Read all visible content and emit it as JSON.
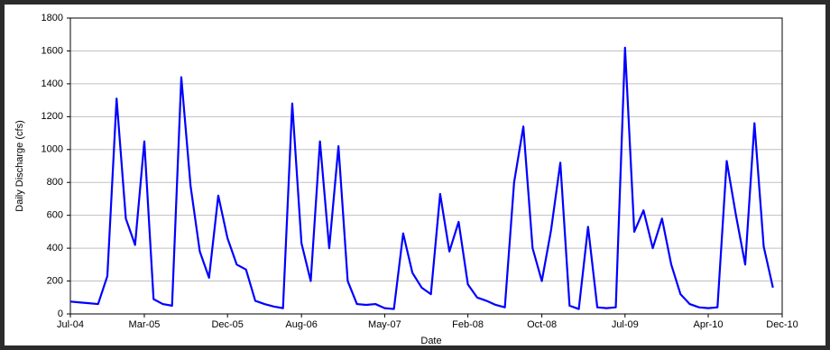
{
  "chart_data": {
    "type": "line",
    "x_label": "Date",
    "y_label": "Daily Discharge (cfs)",
    "x": [
      "2004-07",
      "2004-08",
      "2004-09",
      "2004-10",
      "2004-11",
      "2004-12",
      "2005-01",
      "2005-02",
      "2005-03",
      "2005-04",
      "2005-05",
      "2005-06",
      "2005-07",
      "2005-08",
      "2005-09",
      "2005-10",
      "2005-11",
      "2005-12",
      "2006-01",
      "2006-02",
      "2006-03",
      "2006-04",
      "2006-05",
      "2006-06",
      "2006-07",
      "2006-08",
      "2006-09",
      "2006-10",
      "2006-11",
      "2006-12",
      "2007-01",
      "2007-02",
      "2007-03",
      "2007-04",
      "2007-05",
      "2007-06",
      "2007-07",
      "2007-08",
      "2007-09",
      "2007-10",
      "2007-11",
      "2007-12",
      "2008-01",
      "2008-02",
      "2008-03",
      "2008-04",
      "2008-05",
      "2008-06",
      "2008-07",
      "2008-08",
      "2008-09",
      "2008-10",
      "2008-11",
      "2008-12",
      "2009-01",
      "2009-02",
      "2009-03",
      "2009-04",
      "2009-05",
      "2009-06",
      "2009-07",
      "2009-08",
      "2009-09",
      "2009-10",
      "2009-11",
      "2009-12",
      "2010-01",
      "2010-02",
      "2010-03",
      "2010-04",
      "2010-05",
      "2010-06",
      "2010-07",
      "2010-08",
      "2010-09",
      "2010-10",
      "2010-11"
    ],
    "series": [
      {
        "name": "Daily Discharge",
        "color": "#0000ff",
        "values": [
          75,
          70,
          65,
          60,
          230,
          1310,
          580,
          420,
          1050,
          90,
          60,
          50,
          1440,
          780,
          380,
          220,
          720,
          460,
          300,
          270,
          80,
          60,
          45,
          35,
          1280,
          430,
          200,
          1050,
          400,
          1020,
          200,
          60,
          55,
          60,
          35,
          30,
          490,
          250,
          160,
          120,
          730,
          380,
          560,
          180,
          100,
          80,
          55,
          40,
          800,
          1140,
          400,
          200,
          510,
          920,
          50,
          30,
          530,
          40,
          35,
          40,
          1620,
          500,
          630,
          400,
          580,
          300,
          120,
          60,
          40,
          35,
          40,
          930,
          600,
          300,
          1160,
          410,
          160
        ]
      }
    ],
    "xlim": [
      "2004-07",
      "2010-12"
    ],
    "xticks": [
      {
        "value": "2004-07",
        "label": "Jul-04"
      },
      {
        "value": "2005-03",
        "label": "Mar-05"
      },
      {
        "value": "2005-12",
        "label": "Dec-05"
      },
      {
        "value": "2006-08",
        "label": "Aug-06"
      },
      {
        "value": "2007-05",
        "label": "May-07"
      },
      {
        "value": "2008-02",
        "label": "Feb-08"
      },
      {
        "value": "2008-10",
        "label": "Oct-08"
      },
      {
        "value": "2009-07",
        "label": "Jul-09"
      },
      {
        "value": "2010-04",
        "label": "Apr-10"
      },
      {
        "value": "2010-12",
        "label": "Dec-10"
      }
    ],
    "ylim": [
      0,
      1800
    ],
    "yticks": [
      0,
      200,
      400,
      600,
      800,
      1000,
      1200,
      1400,
      1600,
      1800
    ],
    "grid": true
  }
}
